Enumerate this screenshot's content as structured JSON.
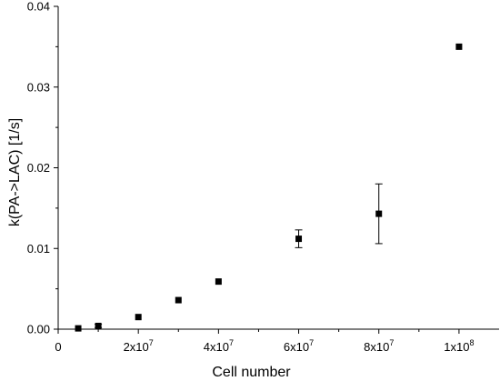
{
  "chart_data": {
    "type": "scatter",
    "title": "",
    "xlabel": "Cell number",
    "ylabel": "k(PA->LAC) [1/s]",
    "xlim": [
      0,
      110000000
    ],
    "ylim": [
      0,
      0.04
    ],
    "grid": false,
    "x_ticks": [
      {
        "value": 0,
        "mantissa": "0",
        "exp": ""
      },
      {
        "value": 20000000,
        "mantissa": "2x10",
        "exp": "7"
      },
      {
        "value": 40000000,
        "mantissa": "4x10",
        "exp": "7"
      },
      {
        "value": 60000000,
        "mantissa": "6x10",
        "exp": "7"
      },
      {
        "value": 80000000,
        "mantissa": "8x10",
        "exp": "7"
      },
      {
        "value": 100000000,
        "mantissa": "1x10",
        "exp": "8"
      }
    ],
    "y_ticks": [
      {
        "value": 0.0,
        "label": "0.00"
      },
      {
        "value": 0.01,
        "label": "0.01"
      },
      {
        "value": 0.02,
        "label": "0.02"
      },
      {
        "value": 0.03,
        "label": "0.03"
      },
      {
        "value": 0.04,
        "label": "0.04"
      }
    ],
    "series": [
      {
        "marker": "square",
        "color": "#000000",
        "points": [
          {
            "x": 5000000,
            "y": 0.0001,
            "err": 0
          },
          {
            "x": 10000000,
            "y": 0.0004,
            "err": 0.0002
          },
          {
            "x": 20000000,
            "y": 0.0015,
            "err": 0
          },
          {
            "x": 30000000,
            "y": 0.0036,
            "err": 0
          },
          {
            "x": 40000000,
            "y": 0.0059,
            "err": 0
          },
          {
            "x": 60000000,
            "y": 0.0112,
            "err": 0.0011
          },
          {
            "x": 80000000,
            "y": 0.0143,
            "err": 0.0037
          },
          {
            "x": 100000000,
            "y": 0.035,
            "err": 0
          }
        ]
      }
    ]
  }
}
